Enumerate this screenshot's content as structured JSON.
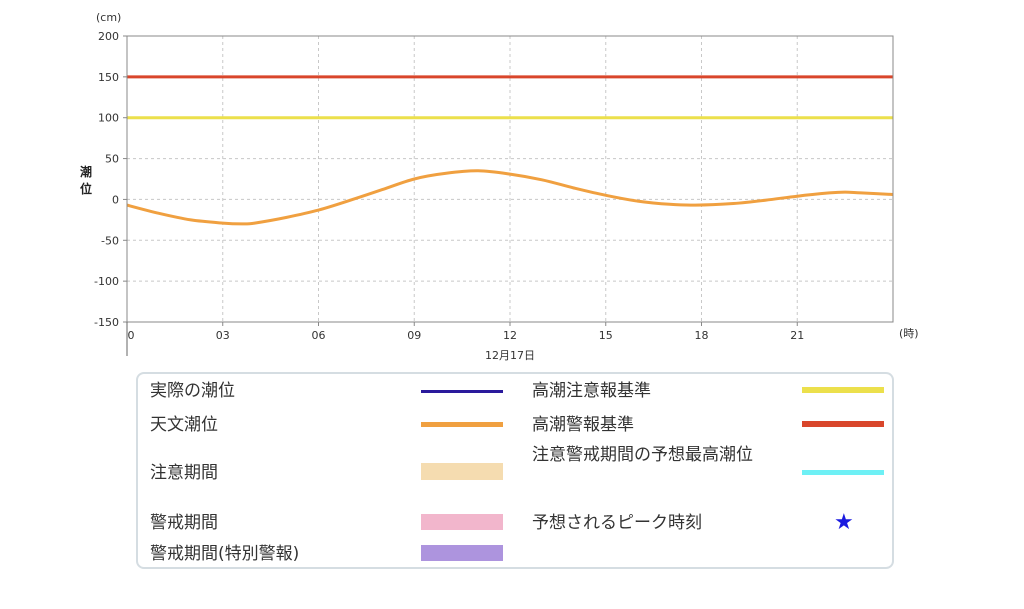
{
  "chart_data": {
    "type": "line",
    "ylabel": "潮位",
    "yunit": "(cm)",
    "xunit": "(時)",
    "date_label": "12月17日",
    "xlim": [
      0,
      24
    ],
    "ylim": [
      -150,
      200
    ],
    "yticks": [
      200,
      150,
      100,
      50,
      0,
      -50,
      -100,
      -150
    ],
    "xticks": [
      0,
      3,
      6,
      9,
      12,
      15,
      18,
      21
    ],
    "xtick_labels": [
      "0",
      "03",
      "06",
      "09",
      "12",
      "15",
      "18",
      "21"
    ],
    "grid": true,
    "thresholds": [
      {
        "name": "高潮警報基準",
        "value": 150,
        "color": "#d9462b"
      },
      {
        "name": "高潮注意報基準",
        "value": 100,
        "color": "#ece04c"
      }
    ],
    "series": [
      {
        "name": "天文潮位",
        "color": "#f0a040",
        "x": [
          0,
          1,
          2,
          3,
          3.6,
          4,
          5,
          6,
          7,
          8,
          9,
          10,
          11,
          12,
          13,
          14,
          15,
          16,
          17,
          17.8,
          19,
          20,
          21,
          22,
          22.5,
          23,
          24
        ],
        "y": [
          -7,
          -17,
          -25,
          -29,
          -30,
          -29,
          -22,
          -13,
          -1,
          12,
          25,
          32,
          35,
          31,
          24,
          14,
          5,
          -2,
          -6,
          -7,
          -5,
          -1,
          4,
          8,
          9,
          8,
          6
        ]
      }
    ]
  },
  "legend": {
    "items": [
      {
        "label": "実際の潮位",
        "color": "#2a1a9c"
      },
      {
        "label": "天文潮位",
        "color": "#f0a040"
      },
      {
        "label": "注意期間",
        "color": "#f5dcb0"
      },
      {
        "label": "警戒期間",
        "color": "#f2b6cc"
      },
      {
        "label": "警戒期間(特別警報)",
        "color": "#ad94de"
      },
      {
        "label": "高潮注意報基準",
        "color": "#ece04c"
      },
      {
        "label": "高潮警報基準",
        "color": "#d9462b"
      },
      {
        "label": "注意警戒期間の予想最高潮位",
        "color": "#6ef0f5"
      },
      {
        "label": "予想されるピーク時刻",
        "color": "#1a1adf",
        "icon": "star-icon"
      }
    ]
  }
}
